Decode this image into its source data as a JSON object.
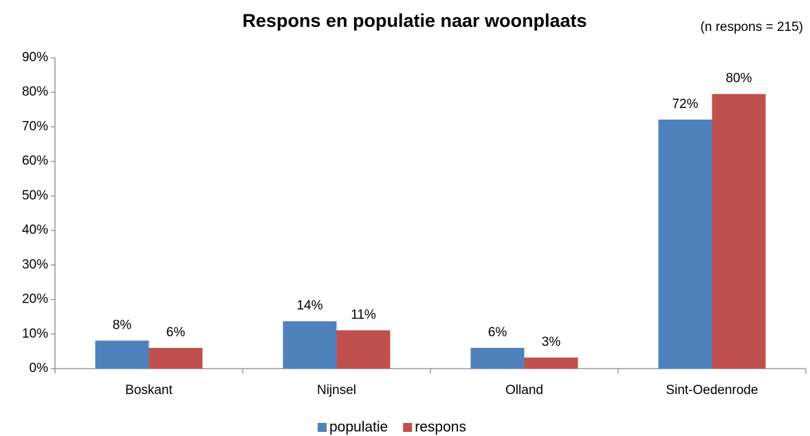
{
  "chart_data": {
    "type": "bar",
    "title": "Respons en populatie naar woonplaats",
    "subtitle": "(n respons = 215)",
    "categories": [
      "Boskant",
      "Nijnsel",
      "Olland",
      "Sint-Oedenrode"
    ],
    "series": [
      {
        "name": "populatie",
        "color": "#4f81bd",
        "values": [
          8.1,
          13.7,
          6.0,
          72.1
        ],
        "value_labels": [
          "8%",
          "14%",
          "6%",
          "72%"
        ]
      },
      {
        "name": "respons",
        "color": "#c0504d",
        "values": [
          6.0,
          11.1,
          3.2,
          79.5
        ],
        "value_labels": [
          "6%",
          "11%",
          "3%",
          "80%"
        ]
      }
    ],
    "ylim": [
      0,
      90
    ],
    "yticks": [
      {
        "value": 0,
        "label": "0%"
      },
      {
        "value": 10,
        "label": "10%"
      },
      {
        "value": 20,
        "label": "20%"
      },
      {
        "value": 30,
        "label": "30%"
      },
      {
        "value": 40,
        "label": "40%"
      },
      {
        "value": 50,
        "label": "50%"
      },
      {
        "value": 60,
        "label": "60%"
      },
      {
        "value": 70,
        "label": "70%"
      },
      {
        "value": 80,
        "label": "80%"
      },
      {
        "value": 90,
        "label": "90%"
      }
    ],
    "grid": false,
    "legend": "bottom"
  }
}
